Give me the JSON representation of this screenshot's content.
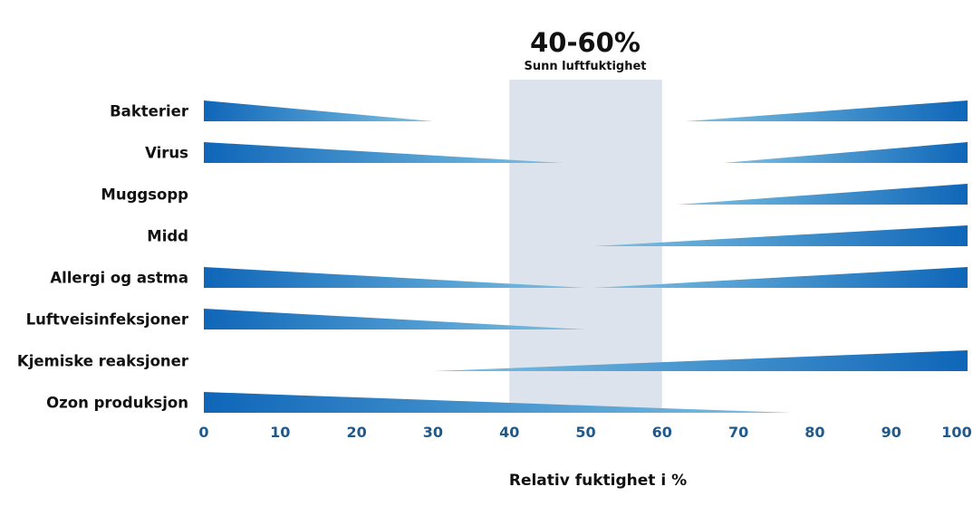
{
  "chart_data": {
    "type": "area",
    "title": "40-60%",
    "subtitle": "Sunn luftfuktighet",
    "xlabel": "Relativ fuktighet i %",
    "ylabel": "",
    "xlim": [
      0,
      100
    ],
    "x_ticks": [
      "0",
      "10",
      "20",
      "30",
      "40",
      "50",
      "60",
      "70",
      "80",
      "90",
      "100"
    ],
    "optimal_band": [
      40,
      60
    ],
    "grid": false,
    "legend": "none",
    "series": [
      {
        "name": "Bakterier",
        "segments": [
          {
            "from": 0,
            "to": 30,
            "thick_end": 0
          },
          {
            "from": 63,
            "to": 100,
            "thick_end": 100
          }
        ]
      },
      {
        "name": "Virus",
        "segments": [
          {
            "from": 0,
            "to": 47,
            "thick_end": 0
          },
          {
            "from": 68,
            "to": 100,
            "thick_end": 100
          }
        ]
      },
      {
        "name": "Muggsopp",
        "segments": [
          {
            "from": 62,
            "to": 100,
            "thick_end": 100
          }
        ]
      },
      {
        "name": "Midd",
        "segments": [
          {
            "from": 51,
            "to": 100,
            "thick_end": 100
          }
        ]
      },
      {
        "name": "Allergi og astma",
        "segments": [
          {
            "from": 0,
            "to": 50,
            "thick_end": 0
          },
          {
            "from": 51,
            "to": 100,
            "thick_end": 100
          }
        ]
      },
      {
        "name": "Luftveisinfeksjoner",
        "segments": [
          {
            "from": 0,
            "to": 50,
            "thick_end": 0
          }
        ]
      },
      {
        "name": "Kjemiske reaksjoner",
        "segments": [
          {
            "from": 30,
            "to": 100,
            "thick_end": 100
          }
        ]
      },
      {
        "name": "Ozon produksjon",
        "segments": [
          {
            "from": 0,
            "to": 77,
            "thick_end": 0
          }
        ]
      }
    ]
  },
  "colors": {
    "bar_dark": "#0f66b8",
    "bar_light": "#7ec3e4",
    "band": "#dde3ec",
    "axis_ticks": "#1e5a8e",
    "label": "#111111"
  }
}
